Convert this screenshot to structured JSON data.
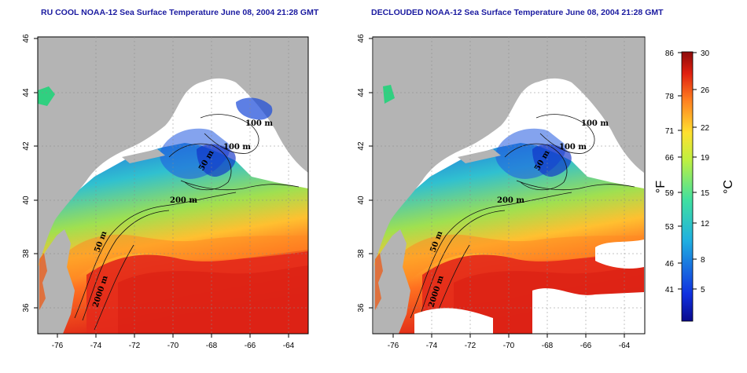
{
  "titles": {
    "left": "RU COOL NOAA-12 Sea Surface Temperature June 08, 2004 21:28 GMT",
    "right": "DECLOUDED NOAA-12 Sea Surface Temperature June 08, 2004 21:28 GMT"
  },
  "map_axes": {
    "lon_ticks": [
      "-76",
      "-74",
      "-72",
      "-70",
      "-68",
      "-66",
      "-64"
    ],
    "lat_ticks": [
      "36",
      "38",
      "40",
      "42",
      "44",
      "46"
    ],
    "lon_range": [
      -77,
      -63
    ],
    "lat_range": [
      35,
      46
    ]
  },
  "contour_labels": {
    "left": [
      "100 m",
      "100 m",
      "50 m",
      "200 m",
      "50 m",
      "2000 m"
    ],
    "right": [
      "100 m",
      "100 m",
      "50 m",
      "200 m",
      "50 m",
      "2000 m"
    ]
  },
  "colorbar": {
    "fahrenheit_ticks": [
      "86",
      "78",
      "71",
      "66",
      "59",
      "53",
      "46",
      "41"
    ],
    "celsius_ticks": [
      "30",
      "26",
      "22",
      "19",
      "15",
      "12",
      "8",
      "5"
    ],
    "fahrenheit_unit": "°F",
    "celsius_unit": "°C",
    "range_c": [
      1,
      30
    ]
  },
  "colors": {
    "land": "#b4b4b4",
    "title": "#1a1aa0",
    "warm": "#e6261a",
    "cold": "#1030c0"
  }
}
